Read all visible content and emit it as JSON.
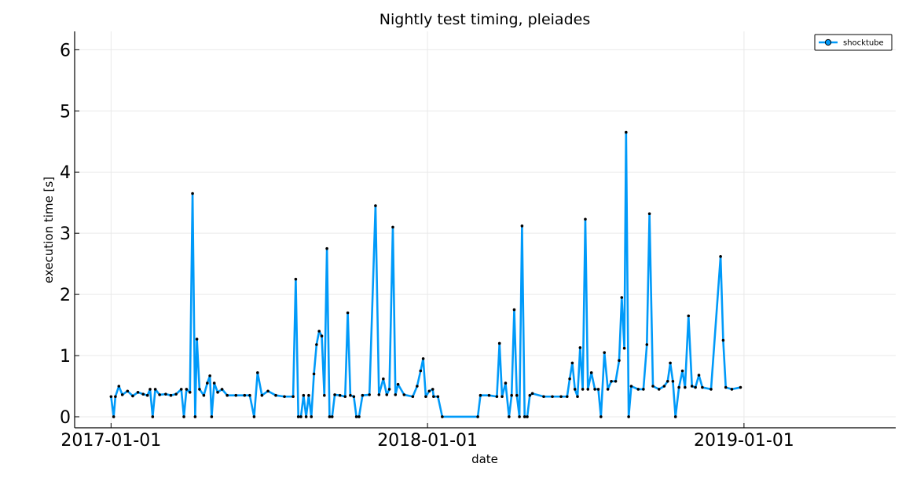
{
  "chart_data": {
    "type": "line",
    "title": "Nightly test timing, pleiades",
    "xlabel": "date",
    "ylabel": "execution time [s]",
    "x_range": [
      "2016-11-20",
      "2019-06-25"
    ],
    "ylim": [
      -0.18,
      6.3
    ],
    "x_ticks": [
      "2017-01-01",
      "2018-01-01",
      "2019-01-01"
    ],
    "y_ticks": [
      0,
      1,
      2,
      3,
      4,
      5,
      6
    ],
    "grid": true,
    "legend": {
      "placement": "top-right",
      "entries": [
        "shocktube"
      ]
    },
    "colors": {
      "line": "#009af9",
      "marker": "#000000"
    },
    "series": [
      {
        "name": "shocktube",
        "points": [
          [
            "2017-01-01",
            0.33
          ],
          [
            "2017-01-04",
            0.0
          ],
          [
            "2017-01-06",
            0.33
          ],
          [
            "2017-01-10",
            0.5
          ],
          [
            "2017-01-14",
            0.36
          ],
          [
            "2017-01-20",
            0.42
          ],
          [
            "2017-01-26",
            0.34
          ],
          [
            "2017-02-01",
            0.4
          ],
          [
            "2017-02-07",
            0.37
          ],
          [
            "2017-02-12",
            0.35
          ],
          [
            "2017-02-15",
            0.45
          ],
          [
            "2017-02-18",
            0.0
          ],
          [
            "2017-02-21",
            0.45
          ],
          [
            "2017-02-26",
            0.36
          ],
          [
            "2017-03-05",
            0.37
          ],
          [
            "2017-03-11",
            0.35
          ],
          [
            "2017-03-17",
            0.37
          ],
          [
            "2017-03-23",
            0.45
          ],
          [
            "2017-03-26",
            0.0
          ],
          [
            "2017-03-29",
            0.45
          ],
          [
            "2017-04-02",
            0.4
          ],
          [
            "2017-04-05",
            3.65
          ],
          [
            "2017-04-08",
            0.0
          ],
          [
            "2017-04-10",
            1.27
          ],
          [
            "2017-04-13",
            0.45
          ],
          [
            "2017-04-18",
            0.35
          ],
          [
            "2017-04-22",
            0.55
          ],
          [
            "2017-04-25",
            0.67
          ],
          [
            "2017-04-27",
            0.0
          ],
          [
            "2017-04-30",
            0.55
          ],
          [
            "2017-05-04",
            0.4
          ],
          [
            "2017-05-09",
            0.45
          ],
          [
            "2017-05-15",
            0.35
          ],
          [
            "2017-05-25",
            0.35
          ],
          [
            "2017-06-04",
            0.35
          ],
          [
            "2017-06-10",
            0.35
          ],
          [
            "2017-06-15",
            0.0
          ],
          [
            "2017-06-19",
            0.72
          ],
          [
            "2017-06-24",
            0.35
          ],
          [
            "2017-07-01",
            0.42
          ],
          [
            "2017-07-10",
            0.35
          ],
          [
            "2017-07-20",
            0.33
          ],
          [
            "2017-07-30",
            0.33
          ],
          [
            "2017-08-02",
            2.25
          ],
          [
            "2017-08-05",
            0.0
          ],
          [
            "2017-08-08",
            0.0
          ],
          [
            "2017-08-11",
            0.35
          ],
          [
            "2017-08-14",
            0.0
          ],
          [
            "2017-08-17",
            0.35
          ],
          [
            "2017-08-20",
            0.0
          ],
          [
            "2017-08-23",
            0.7
          ],
          [
            "2017-08-26",
            1.18
          ],
          [
            "2017-08-29",
            1.4
          ],
          [
            "2017-09-01",
            1.32
          ],
          [
            "2017-09-04",
            0.35
          ],
          [
            "2017-09-07",
            2.75
          ],
          [
            "2017-09-10",
            0.0
          ],
          [
            "2017-09-13",
            0.0
          ],
          [
            "2017-09-16",
            0.36
          ],
          [
            "2017-09-22",
            0.35
          ],
          [
            "2017-09-28",
            0.33
          ],
          [
            "2017-10-01",
            1.7
          ],
          [
            "2017-10-04",
            0.35
          ],
          [
            "2017-10-08",
            0.33
          ],
          [
            "2017-10-11",
            0.0
          ],
          [
            "2017-10-14",
            0.0
          ],
          [
            "2017-10-18",
            0.35
          ],
          [
            "2017-10-26",
            0.36
          ],
          [
            "2017-11-02",
            3.45
          ],
          [
            "2017-11-06",
            0.36
          ],
          [
            "2017-11-11",
            0.62
          ],
          [
            "2017-11-15",
            0.36
          ],
          [
            "2017-11-18",
            0.45
          ],
          [
            "2017-11-22",
            3.1
          ],
          [
            "2017-11-25",
            0.36
          ],
          [
            "2017-11-28",
            0.53
          ],
          [
            "2017-12-05",
            0.36
          ],
          [
            "2017-12-15",
            0.33
          ],
          [
            "2017-12-20",
            0.5
          ],
          [
            "2017-12-24",
            0.75
          ],
          [
            "2017-12-27",
            0.95
          ],
          [
            "2017-12-30",
            0.33
          ],
          [
            "2018-01-03",
            0.42
          ],
          [
            "2018-01-08",
            0.33
          ],
          [
            "2018-01-13",
            0.33
          ],
          [
            "2018-01-18",
            0.0
          ],
          [
            "2018-02-28",
            0.0
          ],
          [
            "2018-03-03",
            0.35
          ],
          [
            "2018-03-13",
            0.35
          ],
          [
            "2018-03-22",
            0.33
          ],
          [
            "2018-03-25",
            1.2
          ],
          [
            "2018-03-28",
            0.33
          ],
          [
            "2018-04-01",
            0.55
          ],
          [
            "2018-04-05",
            0.0
          ],
          [
            "2018-04-08",
            0.35
          ],
          [
            "2018-04-11",
            1.75
          ],
          [
            "2018-04-14",
            0.35
          ],
          [
            "2018-04-17",
            0.0
          ],
          [
            "2018-04-20",
            3.12
          ],
          [
            "2018-04-23",
            0.0
          ],
          [
            "2018-04-26",
            0.0
          ],
          [
            "2018-04-29",
            0.35
          ],
          [
            "2018-05-02",
            0.38
          ],
          [
            "2018-05-15",
            0.33
          ],
          [
            "2018-05-25",
            0.33
          ],
          [
            "2018-06-04",
            0.33
          ],
          [
            "2018-06-11",
            0.33
          ],
          [
            "2018-06-14",
            0.62
          ],
          [
            "2018-06-17",
            0.88
          ],
          [
            "2018-06-20",
            0.45
          ],
          [
            "2018-06-23",
            0.33
          ],
          [
            "2018-06-26",
            1.13
          ],
          [
            "2018-06-29",
            0.45
          ],
          [
            "2018-07-02",
            3.23
          ],
          [
            "2018-07-05",
            0.45
          ],
          [
            "2018-07-09",
            0.72
          ],
          [
            "2018-07-13",
            0.45
          ],
          [
            "2018-07-17",
            0.45
          ],
          [
            "2018-07-20",
            0.0
          ],
          [
            "2018-07-24",
            1.05
          ],
          [
            "2018-07-28",
            0.45
          ],
          [
            "2018-08-01",
            0.58
          ],
          [
            "2018-08-06",
            0.58
          ],
          [
            "2018-08-10",
            0.92
          ],
          [
            "2018-08-13",
            1.95
          ],
          [
            "2018-08-16",
            1.12
          ],
          [
            "2018-08-18",
            4.65
          ],
          [
            "2018-08-21",
            0.0
          ],
          [
            "2018-08-24",
            0.5
          ],
          [
            "2018-09-01",
            0.45
          ],
          [
            "2018-09-07",
            0.45
          ],
          [
            "2018-09-11",
            1.18
          ],
          [
            "2018-09-14",
            3.32
          ],
          [
            "2018-09-18",
            0.5
          ],
          [
            "2018-09-25",
            0.45
          ],
          [
            "2018-10-01",
            0.5
          ],
          [
            "2018-10-05",
            0.58
          ],
          [
            "2018-10-08",
            0.88
          ],
          [
            "2018-10-11",
            0.58
          ],
          [
            "2018-10-14",
            0.0
          ],
          [
            "2018-10-18",
            0.48
          ],
          [
            "2018-10-22",
            0.75
          ],
          [
            "2018-10-25",
            0.48
          ],
          [
            "2018-10-29",
            1.65
          ],
          [
            "2018-11-02",
            0.5
          ],
          [
            "2018-11-06",
            0.48
          ],
          [
            "2018-11-10",
            0.68
          ],
          [
            "2018-11-14",
            0.48
          ],
          [
            "2018-11-24",
            0.45
          ],
          [
            "2018-12-05",
            2.62
          ],
          [
            "2018-12-08",
            1.25
          ],
          [
            "2018-12-11",
            0.48
          ],
          [
            "2018-12-18",
            0.45
          ],
          [
            "2018-12-28",
            0.48
          ],
          [
            "2018-01-07",
            0.45
          ]
        ]
      }
    ]
  }
}
